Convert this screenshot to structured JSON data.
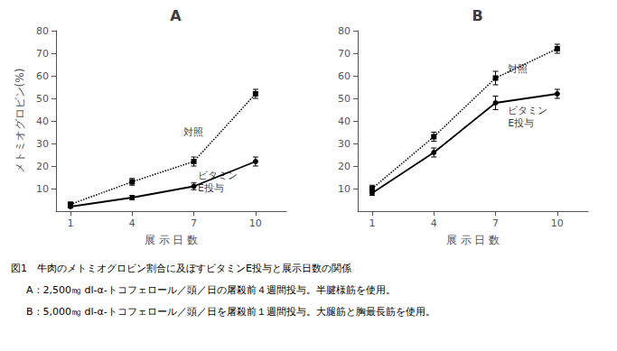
{
  "chart_data": [
    {
      "type": "line",
      "title": "A",
      "x": [
        1,
        4,
        7,
        10
      ],
      "xlim": [
        0.3,
        11.5
      ],
      "xticks": [
        1,
        4,
        7,
        10
      ],
      "ylim": [
        0,
        80
      ],
      "yticks": [
        10,
        20,
        30,
        40,
        50,
        60,
        70,
        80
      ],
      "xlabel": "展 示 日 数",
      "ylabel": "メトミオグロビン(%)",
      "grid": false,
      "series": [
        {
          "values": [
            3,
            13,
            22,
            52
          ],
          "errors": [
            1.0,
            1.5,
            2.0,
            2.0
          ],
          "color": "#000000",
          "marker": "square",
          "line_style": "dotted"
        },
        {
          "values": [
            2,
            6,
            11,
            22
          ],
          "errors": [
            0.5,
            1.0,
            1.5,
            2.0
          ],
          "color": "#000000",
          "marker": "circle",
          "line_style": "solid"
        }
      ],
      "annotations": [
        {
          "text": "対照",
          "x": 6.5,
          "y": 35
        },
        {
          "text": "ビタミン\nE投与",
          "x": 7.2,
          "y": 13
        }
      ]
    },
    {
      "type": "line",
      "title": "B",
      "x": [
        1,
        4,
        7,
        10
      ],
      "xlim": [
        0.3,
        11.5
      ],
      "xticks": [
        1,
        4,
        7,
        10
      ],
      "ylim": [
        0,
        80
      ],
      "yticks": [
        10,
        20,
        30,
        40,
        50,
        60,
        70,
        80
      ],
      "xlabel": "展 示 日 数",
      "grid": false,
      "series": [
        {
          "values": [
            10,
            33,
            59,
            72
          ],
          "errors": [
            1.5,
            2.0,
            3.0,
            2.0
          ],
          "color": "#000000",
          "marker": "square",
          "line_style": "dotted"
        },
        {
          "values": [
            8,
            26,
            48,
            52
          ],
          "errors": [
            1.0,
            2.0,
            3.0,
            2.0
          ],
          "color": "#000000",
          "marker": "circle",
          "line_style": "solid"
        }
      ],
      "annotations": [
        {
          "text": "対照",
          "x": 7.6,
          "y": 63
        },
        {
          "text": "ビタミン\nE投与",
          "x": 7.6,
          "y": 42
        }
      ]
    }
  ],
  "caption": [
    "図1　牛肉のメトミオグロビン割合に及ぼすビタミンE投与と展示日数の関係",
    "　A：2,500㎎ dl-α-トコフェロール／頭／日の屠殺前４週間投与。半腱様筋を使用。",
    "　B：5,000㎎ dl-α-トコフェロール／頭／日を屠殺前１週間投与。大腿筋と胸最長筋を使用。"
  ]
}
